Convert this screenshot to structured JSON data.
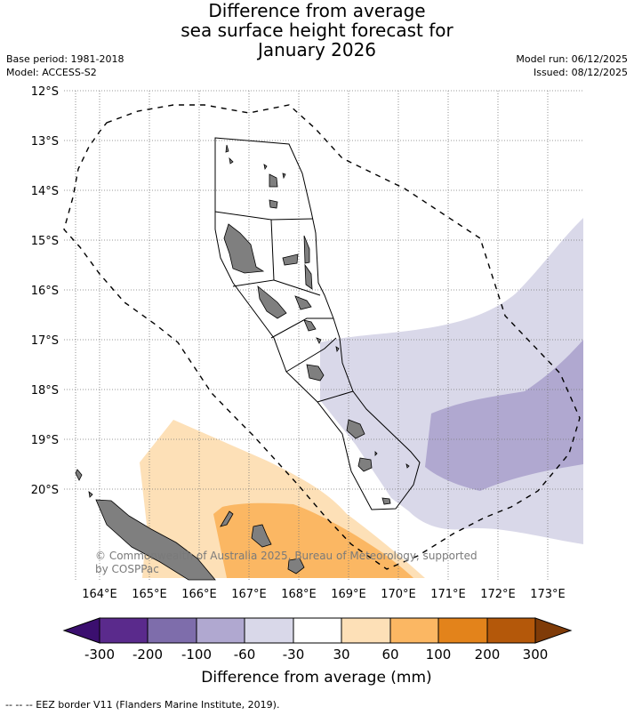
{
  "header": {
    "title_lines": [
      "Difference from average",
      "sea surface height forecast for",
      "January 2026"
    ],
    "base_period": "Base period: 1981-2018",
    "model": "Model: ACCESS-S2",
    "model_run": "Model run: 06/12/2025",
    "issued": "Issued: 08/12/2025"
  },
  "map": {
    "lat_labels": [
      "12°S",
      "13°S",
      "14°S",
      "15°S",
      "16°S",
      "17°S",
      "18°S",
      "19°S",
      "20°S"
    ],
    "lon_labels": [
      "164°E",
      "165°E",
      "166°E",
      "167°E",
      "168°E",
      "169°E",
      "170°E",
      "171°E",
      "172°E",
      "173°E"
    ],
    "copyright_lines": [
      "© Commonwealth of Australia 2025, Bureau of Meteorology, supported",
      "by COSPPac"
    ]
  },
  "colorbar": {
    "ticks": [
      "-300",
      "-200",
      "-100",
      "-60",
      "-30",
      "30",
      "60",
      "100",
      "200",
      "300"
    ],
    "colors": [
      "#3b0f6f",
      "#5a2a8c",
      "#7e6dab",
      "#b0a8d0",
      "#d9d8e9",
      "#ffffff",
      "#fde0b7",
      "#fbb763",
      "#e3831b",
      "#b4580a",
      "#7f3b08"
    ],
    "label": "Difference from average (mm)"
  },
  "footer": {
    "eez_note": "--  --  -- EEZ border V11 (Flanders Marine Institute, 2019)."
  }
}
